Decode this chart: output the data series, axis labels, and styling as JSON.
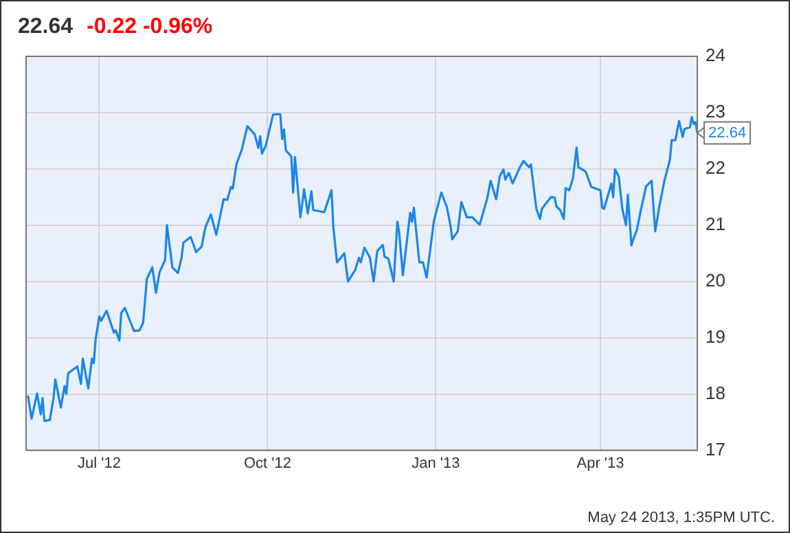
{
  "chart_data": {
    "type": "line",
    "title": "22.64",
    "subtitle": "-0.22  -0.96%",
    "xlim": [
      "2012-05-22",
      "2013-05-24"
    ],
    "xticks": [
      {
        "value": "2012-07-01",
        "label": "Jul '12"
      },
      {
        "value": "2012-10-01",
        "label": "Oct '12"
      },
      {
        "value": "2013-01-01",
        "label": "Jan '13"
      },
      {
        "value": "2013-04-01",
        "label": "Apr '13"
      }
    ],
    "ylim": [
      17,
      24
    ],
    "yticks": [
      17,
      18,
      19,
      20,
      21,
      22,
      23,
      24
    ],
    "grid": true,
    "legend": false,
    "marker": "none",
    "line_style": "solid",
    "annotations": [
      {
        "text": "22.64",
        "x": "2013-05-24",
        "y": 22.64
      },
      "May 24 2013, 1:35PM UTC."
    ],
    "series": [
      {
        "color": "#1a86e8",
        "x": [
          "2012-05-23",
          "2012-05-25",
          "2012-05-28",
          "2012-05-30",
          "2012-05-31",
          "2012-06-01",
          "2012-06-04",
          "2012-06-06",
          "2012-06-07",
          "2012-06-10",
          "2012-06-12",
          "2012-06-13",
          "2012-06-14",
          "2012-06-19",
          "2012-06-21",
          "2012-06-22",
          "2012-06-25",
          "2012-06-27",
          "2012-06-28",
          "2012-06-29",
          "2012-07-01",
          "2012-07-02",
          "2012-07-05",
          "2012-07-09",
          "2012-07-10",
          "2012-07-12",
          "2012-07-13",
          "2012-07-15",
          "2012-07-20",
          "2012-07-23",
          "2012-07-25",
          "2012-07-27",
          "2012-07-30",
          "2012-08-01",
          "2012-08-03",
          "2012-08-06",
          "2012-08-07",
          "2012-08-10",
          "2012-08-13",
          "2012-08-15",
          "2012-08-16",
          "2012-08-20",
          "2012-08-23",
          "2012-08-26",
          "2012-08-28",
          "2012-08-31",
          "2012-09-03",
          "2012-09-07",
          "2012-09-09",
          "2012-09-11",
          "2012-09-12",
          "2012-09-14",
          "2012-09-17",
          "2012-09-20",
          "2012-09-24",
          "2012-09-26",
          "2012-09-27",
          "2012-09-28",
          "2012-09-30",
          "2012-10-04",
          "2012-10-05",
          "2012-10-08",
          "2012-10-09",
          "2012-10-10",
          "2012-10-11",
          "2012-10-14",
          "2012-10-15",
          "2012-10-16",
          "2012-10-19",
          "2012-10-21",
          "2012-10-23",
          "2012-10-25",
          "2012-10-26",
          "2012-11-01",
          "2012-11-05",
          "2012-11-06",
          "2012-11-08",
          "2012-11-12",
          "2012-11-14",
          "2012-11-18",
          "2012-11-20",
          "2012-11-21",
          "2012-11-23",
          "2012-11-26",
          "2012-11-28",
          "2012-11-30",
          "2012-12-03",
          "2012-12-04",
          "2012-12-06",
          "2012-12-09",
          "2012-12-11",
          "2012-12-12",
          "2012-12-14",
          "2012-12-18",
          "2012-12-19",
          "2012-12-20",
          "2012-12-23",
          "2012-12-25",
          "2012-12-27",
          "2012-12-31",
          "2013-01-04",
          "2013-01-07",
          "2013-01-09",
          "2013-01-10",
          "2013-01-13",
          "2013-01-15",
          "2013-01-18",
          "2013-01-21",
          "2013-01-25",
          "2013-01-29",
          "2013-01-31",
          "2013-02-03",
          "2013-02-05",
          "2013-02-07",
          "2013-02-08",
          "2013-02-10",
          "2013-02-12",
          "2013-02-16",
          "2013-02-18",
          "2013-02-21",
          "2013-02-22",
          "2013-02-25",
          "2013-02-27",
          "2013-02-28",
          "2013-03-05",
          "2013-03-07",
          "2013-03-08",
          "2013-03-10",
          "2013-03-12",
          "2013-03-13",
          "2013-03-15",
          "2013-03-17",
          "2013-03-19",
          "2013-03-20",
          "2013-03-24",
          "2013-03-27",
          "2013-04-01",
          "2013-04-02",
          "2013-04-03",
          "2013-04-07",
          "2013-04-08",
          "2013-04-09",
          "2013-04-11",
          "2013-04-13",
          "2013-04-15",
          "2013-04-16",
          "2013-04-18",
          "2013-04-19",
          "2013-04-21",
          "2013-04-23",
          "2013-04-26",
          "2013-04-29",
          "2013-05-01",
          "2013-05-03",
          "2013-05-06",
          "2013-05-09",
          "2013-05-10",
          "2013-05-12",
          "2013-05-14",
          "2013-05-16",
          "2013-05-17",
          "2013-05-20",
          "2013-05-21",
          "2013-05-22",
          "2013-05-23",
          "2013-05-24"
        ],
        "values": [
          17.97,
          17.56,
          18.01,
          17.64,
          17.93,
          17.52,
          17.54,
          17.93,
          18.26,
          17.76,
          18.14,
          18.0,
          18.37,
          18.49,
          18.18,
          18.63,
          18.1,
          18.63,
          18.55,
          18.97,
          19.38,
          19.3,
          19.48,
          19.09,
          19.13,
          18.95,
          19.44,
          19.53,
          19.12,
          19.13,
          19.27,
          20.04,
          20.25,
          19.8,
          20.17,
          20.38,
          21.0,
          20.25,
          20.15,
          20.42,
          20.69,
          20.79,
          20.52,
          20.62,
          20.96,
          21.19,
          20.83,
          21.46,
          21.45,
          21.68,
          21.65,
          22.08,
          22.35,
          22.76,
          22.61,
          22.37,
          22.58,
          22.27,
          22.41,
          22.96,
          22.97,
          22.97,
          22.53,
          22.7,
          22.33,
          22.22,
          21.58,
          22.21,
          21.14,
          21.64,
          21.21,
          21.6,
          21.27,
          21.23,
          21.62,
          20.96,
          20.34,
          20.5,
          20.0,
          20.21,
          20.42,
          20.34,
          20.6,
          20.42,
          20.0,
          20.54,
          20.65,
          20.44,
          20.41,
          20.0,
          21.06,
          20.87,
          20.11,
          21.22,
          21.06,
          21.31,
          20.34,
          20.34,
          20.07,
          21.08,
          21.58,
          21.33,
          21.0,
          20.75,
          20.89,
          21.41,
          21.14,
          21.14,
          21.01,
          21.46,
          21.79,
          21.46,
          21.87,
          21.99,
          21.81,
          21.93,
          21.74,
          22.03,
          22.14,
          22.03,
          22.08,
          21.29,
          21.11,
          21.29,
          21.5,
          21.49,
          21.33,
          21.27,
          21.11,
          21.66,
          21.62,
          21.83,
          22.38,
          22.03,
          21.95,
          21.68,
          21.62,
          21.31,
          21.29,
          21.74,
          21.5,
          21.99,
          21.87,
          21.29,
          21.0,
          21.54,
          20.64,
          20.75,
          20.92,
          21.25,
          21.69,
          21.79,
          20.89,
          21.29,
          21.79,
          22.16,
          22.51,
          22.51,
          22.85,
          22.57,
          22.71,
          22.74,
          22.92,
          22.8,
          22.83,
          22.64
        ]
      }
    ]
  }
}
